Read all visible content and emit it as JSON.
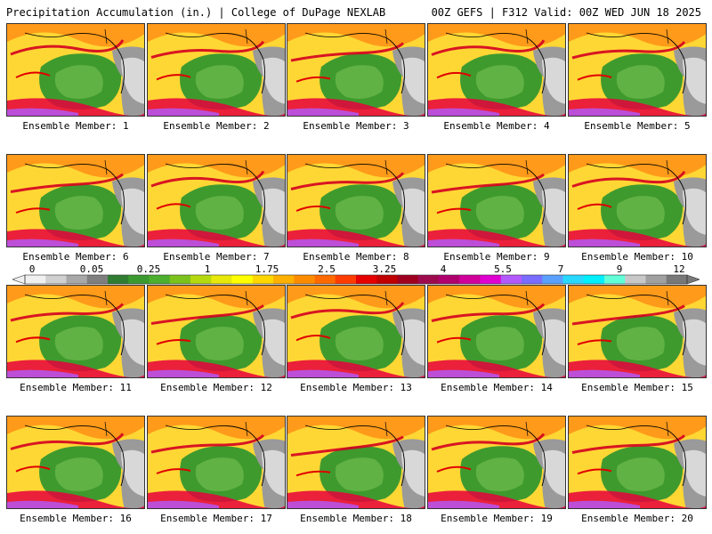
{
  "header": {
    "left": "Precipitation Accumulation (in.) | College of DuPage NEXLAB",
    "right": "00Z GEFS | F312 Valid: 00Z WED JUN 18 2025"
  },
  "members": [
    {
      "caption": "Ensemble Member: 1"
    },
    {
      "caption": "Ensemble Member: 2"
    },
    {
      "caption": "Ensemble Member: 3"
    },
    {
      "caption": "Ensemble Member: 4"
    },
    {
      "caption": "Ensemble Member: 5"
    },
    {
      "caption": "Ensemble Member: 6"
    },
    {
      "caption": "Ensemble Member: 7"
    },
    {
      "caption": "Ensemble Member: 8"
    },
    {
      "caption": "Ensemble Member: 9"
    },
    {
      "caption": "Ensemble Member: 10"
    },
    {
      "caption": "Ensemble Member: 11"
    },
    {
      "caption": "Ensemble Member: 12"
    },
    {
      "caption": "Ensemble Member: 13"
    },
    {
      "caption": "Ensemble Member: 14"
    },
    {
      "caption": "Ensemble Member: 15"
    },
    {
      "caption": "Ensemble Member: 16"
    },
    {
      "caption": "Ensemble Member: 17"
    },
    {
      "caption": "Ensemble Member: 18"
    },
    {
      "caption": "Ensemble Member: 19"
    },
    {
      "caption": "Ensemble Member: 20"
    }
  ],
  "colorbar": {
    "labels": [
      "0",
      "0.05",
      "0.25",
      "1",
      "1.75",
      "2.5",
      "3.25",
      "4",
      "5.5",
      "7",
      "9",
      "12"
    ],
    "colors": [
      "#f0f0f0",
      "#d0d0d0",
      "#a8a8a8",
      "#7f7f7f",
      "#2e7d32",
      "#3b9a2f",
      "#4caf2d",
      "#7cc21c",
      "#b5d90f",
      "#e8e80a",
      "#ffff00",
      "#ffd700",
      "#ffb000",
      "#ff8c00",
      "#ff6a00",
      "#ff3c00",
      "#e60000",
      "#c00000",
      "#a00020",
      "#9e0a4e",
      "#b0006e",
      "#d1009a",
      "#e000d0",
      "#b35aff",
      "#7a6cff",
      "#5aa0ff",
      "#28d8ff",
      "#00f0ff",
      "#60ffd8",
      "#c8c8c8",
      "#a0a0a0",
      "#787878"
    ]
  }
}
